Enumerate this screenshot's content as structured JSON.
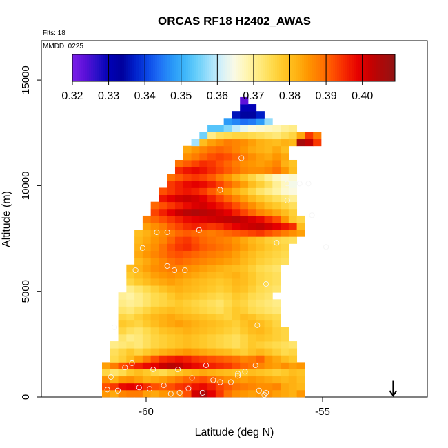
{
  "chart_data": {
    "type": "heatmap",
    "title": "ORCAS RF18 H2402_AWAS",
    "flights_label": "Flts: 18",
    "date_label": "MMDD: 0225",
    "xlabel": "Latitude (deg N)",
    "ylabel": "Altitude (m)",
    "xlim": [
      -63.0,
      -52.0
    ],
    "ylim": [
      0,
      16800
    ],
    "x_ticks": [
      -60,
      -55
    ],
    "x_tick_labels": [
      "-60",
      "-55"
    ],
    "y_ticks": [
      0,
      5000,
      10000,
      15000
    ],
    "y_tick_labels": [
      "0",
      "5000",
      "10000",
      "15000"
    ],
    "colorbar": {
      "min": 0.32,
      "max": 0.409,
      "ticks": [
        0.32,
        0.33,
        0.34,
        0.35,
        0.36,
        0.37,
        0.38,
        0.39,
        0.4
      ],
      "tick_labels": [
        "0.32",
        "0.33",
        "0.34",
        "0.35",
        "0.36",
        "0.37",
        "0.38",
        "0.39",
        "0.40"
      ],
      "colors": [
        "#7b1fe8",
        "#5a10d8",
        "#2a10c8",
        "#0000b4",
        "#00009c",
        "#001ec8",
        "#0a46e6",
        "#1e6ef5",
        "#2896f8",
        "#3cb4fa",
        "#64cdfa",
        "#9ee0fb",
        "#d2f0fa",
        "#fafae6",
        "#fff6b4",
        "#ffeb82",
        "#ffdc50",
        "#ffc828",
        "#ffb414",
        "#ff9600",
        "#ff7800",
        "#ff5000",
        "#f52800",
        "#e60000",
        "#c80000",
        "#aa0a0a",
        "#911414"
      ]
    },
    "grid": {
      "x0": -61.25,
      "dx": 0.23,
      "y0": 0,
      "dy": 330
    },
    "rows": [
      [
        0,
        [
          0.385,
          0.383,
          0.387,
          0.388,
          0.388,
          0.384,
          0.383,
          0.385,
          0.386,
          0.387,
          0.392,
          0.401,
          0.405,
          0.399,
          0.394,
          0.389,
          0.386,
          0.385,
          0.384,
          0.385,
          0.386,
          0.384,
          0.383,
          0.382,
          0.385
        ]
      ],
      [
        0,
        [
          0.392,
          0.394,
          0.398,
          0.399,
          0.398,
          0.395,
          0.392,
          0.391,
          0.392,
          0.394,
          0.395,
          0.397,
          0.398,
          0.396,
          0.393,
          0.391,
          0.389,
          0.388,
          0.387,
          0.386,
          0.386,
          0.387,
          0.383,
          0.382,
          0.381
        ]
      ],
      [
        0,
        [
          0.386,
          0.382,
          0.385,
          0.386,
          0.384,
          0.382,
          0.383,
          0.384,
          0.386,
          0.388,
          0.39,
          0.391,
          0.392,
          0.39,
          0.388,
          0.386,
          0.385,
          0.384,
          0.385,
          0.384,
          0.383,
          0.382,
          0.381,
          0.382,
          0.38
        ]
      ],
      [
        0,
        [
          0.376,
          0.373,
          0.375,
          0.378,
          0.38,
          0.378,
          0.376,
          0.375,
          0.377,
          0.379,
          0.381,
          0.382,
          0.383,
          0.382,
          0.381,
          0.38,
          0.379,
          0.378,
          0.38,
          0.379,
          0.378,
          0.377,
          0.378,
          0.38,
          0.379
        ]
      ],
      [
        0,
        [
          0.384,
          0.388,
          0.392,
          0.394,
          0.396,
          0.398,
          0.399,
          0.402,
          0.404,
          0.403,
          0.4,
          0.398,
          0.397,
          0.396,
          0.395,
          0.394,
          0.392,
          0.39,
          0.389,
          0.387,
          0.385,
          0.384,
          0.386,
          0.384,
          0.385
        ]
      ],
      [
        1,
        [
          0.375,
          0.377,
          0.38,
          0.384,
          0.388,
          0.392,
          0.395,
          0.396,
          0.397,
          0.396,
          0.394,
          0.393,
          0.392,
          0.391,
          0.39,
          0.389,
          0.387,
          0.388,
          0.39,
          0.385,
          0.383,
          0.38,
          0.378
        ]
      ],
      [
        1,
        [
          0.374,
          0.376,
          0.378,
          0.376,
          0.378,
          0.38,
          0.382,
          0.383,
          0.384,
          0.385,
          0.384,
          0.383,
          0.382,
          0.381,
          0.38,
          0.378,
          0.377,
          0.379,
          0.381,
          0.379,
          0.377,
          0.375,
          0.376
        ]
      ],
      [
        1,
        [
          0.371,
          0.372,
          0.373,
          0.372,
          0.374,
          0.376,
          0.377,
          0.378,
          0.379,
          0.38,
          0.379,
          0.378,
          0.377,
          0.376,
          0.375,
          0.374,
          0.376,
          0.378,
          0.377,
          0.376,
          0.375,
          0.374,
          0.373
        ]
      ],
      [
        2,
        [
          0.373,
          0.371,
          0.372,
          0.374,
          0.376,
          0.377,
          0.378,
          0.379,
          0.38,
          0.379,
          0.378,
          0.377,
          0.376,
          0.375,
          0.374,
          0.376,
          0.378,
          0.379,
          0.378,
          0.377,
          0.376
        ]
      ],
      [
        2,
        [
          0.376,
          0.374,
          0.373,
          0.375,
          0.377,
          0.379,
          0.38,
          0.381,
          0.382,
          0.381,
          0.38,
          0.379,
          0.378,
          0.377,
          0.376,
          0.378,
          0.38,
          0.381,
          0.379,
          0.377,
          0.376
        ]
      ],
      [
        2,
        [
          0.378,
          0.377,
          0.376,
          0.378,
          0.38,
          0.382,
          0.383,
          0.384,
          0.383,
          0.382,
          0.381,
          0.38,
          0.379,
          0.378,
          0.377,
          0.379,
          0.381,
          0.38,
          0.378,
          0.376
        ]
      ],
      [
        2,
        [
          0.376,
          0.375,
          0.377,
          0.379,
          0.381,
          0.382,
          0.383,
          0.382,
          0.381,
          0.38,
          0.379,
          0.378,
          0.377,
          0.376,
          0.378,
          0.38,
          0.379,
          0.377,
          0.376,
          0.375
        ]
      ],
      [
        2,
        [
          0.373,
          0.372,
          0.374,
          0.376,
          0.378,
          0.379,
          0.38,
          0.379,
          0.378,
          0.377,
          0.376,
          0.375,
          0.374,
          0.376,
          0.378,
          0.377,
          0.375,
          0.374,
          0.373,
          0.372
        ]
      ],
      [
        2,
        [
          0.371,
          0.37,
          0.371,
          0.373,
          0.375,
          0.376,
          0.377,
          0.378,
          0.377,
          0.376,
          0.375,
          0.374,
          0.373,
          0.375,
          0.377,
          0.376,
          0.374,
          0.373,
          0.372,
          0.371
        ]
      ],
      [
        2,
        [
          0.37,
          0.369,
          0.371,
          0.373,
          0.375,
          0.376,
          0.378,
          0.38,
          0.379,
          0.378,
          0.377,
          0.376,
          0.375,
          0.376,
          0.378,
          0.377,
          0.375,
          0.374,
          0.373
        ]
      ],
      [
        3,
        [
          0.371,
          0.373,
          0.375,
          0.377,
          0.379,
          0.381,
          0.382,
          0.381,
          0.38,
          0.379,
          0.378,
          0.377,
          0.378,
          0.38,
          0.379,
          0.377,
          0.375,
          0.374,
          0.373
        ]
      ],
      [
        3,
        [
          0.376,
          0.378,
          0.38,
          0.382,
          0.383,
          0.384,
          0.383,
          0.382,
          0.381,
          0.38,
          0.379,
          0.378,
          0.379,
          0.381,
          0.38,
          0.378,
          0.376,
          0.375,
          0.374
        ]
      ],
      [
        3,
        [
          0.378,
          0.38,
          0.382,
          0.384,
          0.385,
          0.386,
          0.385,
          0.384,
          0.383,
          0.382,
          0.381,
          0.38,
          0.381,
          0.382,
          0.38,
          0.378,
          0.376,
          0.375,
          0.374
        ]
      ],
      [
        3,
        [
          0.38,
          0.382,
          0.384,
          0.386,
          0.387,
          0.388,
          0.387,
          0.386,
          0.385,
          0.384,
          0.383,
          0.382,
          0.381,
          0.38,
          0.379,
          0.377,
          0.375,
          0.374,
          0.373
        ]
      ],
      [
        4,
        [
          0.381,
          0.383,
          0.385,
          0.387,
          0.389,
          0.39,
          0.389,
          0.388,
          0.387,
          0.386,
          0.385,
          0.384,
          0.383,
          0.381,
          0.379,
          0.377,
          0.376,
          0.375,
          0.374
        ]
      ],
      [
        4,
        [
          0.383,
          0.385,
          0.387,
          0.389,
          0.391,
          0.392,
          0.391,
          0.39,
          0.389,
          0.388,
          0.387,
          0.386,
          0.384,
          0.382,
          0.38,
          0.378,
          0.377,
          0.376,
          0.375
        ]
      ],
      [
        4,
        [
          0.382,
          0.384,
          0.386,
          0.389,
          0.392,
          0.394,
          0.395,
          0.393,
          0.391,
          0.39,
          0.389,
          0.388,
          0.386,
          0.384,
          0.382,
          0.38,
          0.378,
          0.377,
          0.376
        ]
      ],
      [
        4,
        [
          0.381,
          0.383,
          0.385,
          0.387,
          0.39,
          0.393,
          0.394,
          0.392,
          0.39,
          0.389,
          0.388,
          0.387,
          0.385,
          0.383,
          0.381,
          0.379,
          0.377,
          0.376,
          0.375,
          0.374
        ]
      ],
      [
        4,
        [
          0.38,
          0.382,
          0.384,
          0.386,
          0.388,
          0.39,
          0.391,
          0.39,
          0.389,
          0.388,
          0.389,
          0.39,
          0.391,
          0.392,
          0.393,
          0.394,
          0.392,
          0.39,
          0.388,
          0.386,
          0.384
        ]
      ],
      [
        5,
        [
          0.384,
          0.386,
          0.388,
          0.391,
          0.393,
          0.395,
          0.396,
          0.395,
          0.394,
          0.395,
          0.397,
          0.399,
          0.401,
          0.402,
          0.403,
          0.401,
          0.399,
          0.397,
          0.395,
          0.38
        ]
      ],
      [
        5,
        [
          0.388,
          0.39,
          0.392,
          0.394,
          0.396,
          0.398,
          0.399,
          0.4,
          0.401,
          0.402,
          0.403,
          0.404,
          0.402,
          0.4,
          0.398,
          0.395,
          0.392,
          0.385,
          0.378,
          0.376
        ]
      ],
      [
        6,
        [
          0.393,
          0.396,
          0.399,
          0.402,
          0.404,
          0.405,
          0.404,
          0.403,
          0.401,
          0.399,
          0.396,
          0.393,
          0.39,
          0.387,
          0.385,
          0.383,
          0.38,
          0.377
        ]
      ],
      [
        6,
        [
          0.39,
          0.392,
          0.394,
          0.396,
          0.398,
          0.4,
          0.401,
          0.399,
          0.397,
          0.395,
          0.392,
          0.389,
          0.386,
          0.383,
          0.38,
          0.378,
          0.376,
          0.374
        ]
      ],
      [
        7,
        [
          0.397,
          0.399,
          0.401,
          0.402,
          0.401,
          0.399,
          0.396,
          0.393,
          0.39,
          0.387,
          0.384,
          0.381,
          0.378,
          0.376,
          0.374,
          0.372,
          0.37
        ]
      ],
      [
        7,
        [
          0.392,
          0.394,
          0.396,
          0.397,
          0.396,
          0.394,
          0.391,
          0.388,
          0.385,
          0.382,
          0.379,
          0.376,
          0.373,
          0.371,
          0.369,
          0.366,
          0.365
        ]
      ],
      [
        8,
        [
          0.394,
          0.396,
          0.398,
          0.399,
          0.398,
          0.396,
          0.393,
          0.39,
          0.387,
          0.384,
          0.38,
          0.377,
          0.374,
          0.37,
          0.367,
          0.364
        ]
      ],
      [
        8,
        [
          0.389,
          0.391,
          0.393,
          0.394,
          0.393,
          0.391,
          0.388,
          0.385,
          0.382,
          0.379,
          0.376,
          0.373,
          0.37,
          0.367,
          0.365,
          0.366
        ]
      ],
      [
        9,
        [
          0.395,
          0.397,
          0.398,
          0.397,
          0.395,
          0.393,
          0.391,
          0.389,
          0.387,
          0.386,
          0.386,
          0.387,
          0.389,
          0.385,
          0.38
        ]
      ],
      [
        9,
        [
          0.389,
          0.391,
          0.393,
          0.395,
          0.394,
          0.392,
          0.39,
          0.388,
          0.386,
          0.385,
          0.384,
          0.385,
          0.387,
          0.382,
          0.379
        ]
      ],
      [
        10,
        [
          0.386,
          0.388,
          0.39,
          0.392,
          0.393,
          0.392,
          0.39,
          0.388,
          0.386,
          0.384,
          0.383,
          0.385,
          0.383
        ]
      ],
      [
        10,
        [
          0.383,
          0.385,
          0.387,
          0.389,
          0.39,
          0.389,
          0.387,
          0.385,
          0.383,
          0.382,
          0.381,
          0.383,
          0.38
        ]
      ],
      [
        11,
        [
          0.358,
          0.38,
          0.384,
          0.386,
          0.388,
          0.387,
          0.386,
          0.384,
          0.382,
          0.381,
          0.38,
          0.382,
          0.381,
          0.406,
          0.403,
          0.394
        ]
      ],
      [
        12,
        [
          0.355,
          0.371,
          0.374,
          0.375,
          0.376,
          0.376,
          0.375,
          0.374,
          0.373,
          0.372,
          0.374,
          0.376,
          0.383,
          0.394,
          0.388
        ]
      ],
      [
        13,
        [
          0.353,
          0.353,
          0.356,
          0.36,
          0.363,
          0.365,
          0.366,
          0.367,
          0.368,
          0.37,
          0.371
        ]
      ],
      [
        15,
        [
          0.348,
          0.346,
          0.344,
          0.345,
          0.348,
          0.357
        ]
      ],
      [
        16,
        [
          0.336,
          0.334,
          0.334,
          0.337
        ]
      ],
      [
        17,
        [
          0.33,
          0.33
        ]
      ],
      [
        17,
        [
          0.323
        ]
      ]
    ],
    "samples": [
      [
        -61.1,
        350
      ],
      [
        -60.8,
        300
      ],
      [
        -60.2,
        450
      ],
      [
        -59.9,
        380
      ],
      [
        -59.5,
        550
      ],
      [
        -59.3,
        150
      ],
      [
        -59.05,
        200
      ],
      [
        -58.8,
        400
      ],
      [
        -58.4,
        200
      ],
      [
        -58.1,
        800
      ],
      [
        -57.6,
        700
      ],
      [
        -57.4,
        1100
      ],
      [
        -57.2,
        1200
      ],
      [
        -56.8,
        300
      ],
      [
        -56.6,
        200
      ],
      [
        -56.65,
        100
      ],
      [
        -61.0,
        950
      ],
      [
        -60.6,
        1400
      ],
      [
        -60.4,
        1600
      ],
      [
        -59.8,
        1300
      ],
      [
        -59.1,
        1300
      ],
      [
        -58.7,
        900
      ],
      [
        -58.3,
        1500
      ],
      [
        -57.9,
        700
      ],
      [
        -57.4,
        1000
      ],
      [
        -56.9,
        1500
      ],
      [
        -60.9,
        3300
      ],
      [
        -56.85,
        3400
      ],
      [
        -56.6,
        5350
      ],
      [
        -60.3,
        6000
      ],
      [
        -59.4,
        6200
      ],
      [
        -59.2,
        6000
      ],
      [
        -58.9,
        6000
      ],
      [
        -56.3,
        7300
      ],
      [
        -59.7,
        7800
      ],
      [
        -59.4,
        7800
      ],
      [
        -58.5,
        7900
      ],
      [
        -56.0,
        9300
      ],
      [
        -55.3,
        8600
      ],
      [
        -54.9,
        7100
      ],
      [
        -55.4,
        10100
      ],
      [
        -55.65,
        10100
      ],
      [
        -56.0,
        10100
      ],
      [
        -57.9,
        9800
      ],
      [
        -57.3,
        11300
      ],
      [
        -60.1,
        7050
      ]
    ],
    "arrow": {
      "x": -53.0,
      "y_from": 700,
      "y_to": 0
    }
  }
}
